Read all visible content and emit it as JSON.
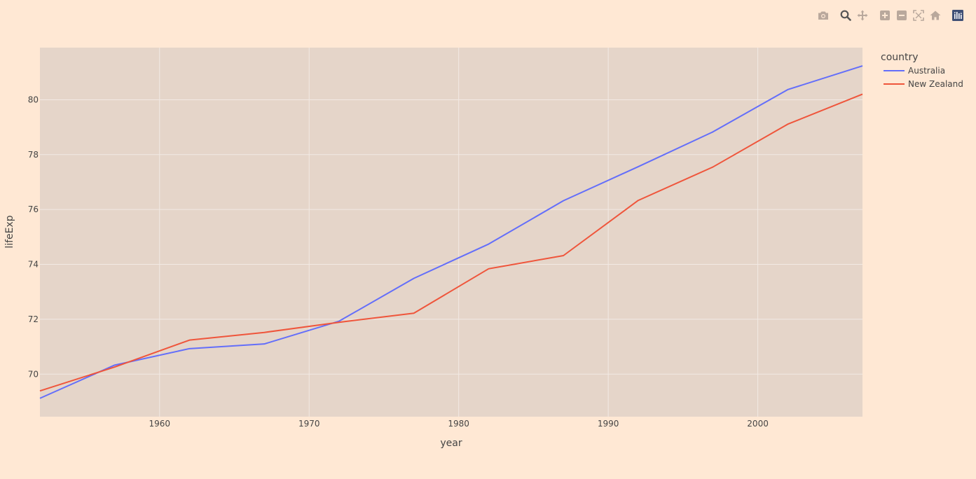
{
  "modebar": {
    "icons": [
      "camera-icon",
      "zoom-icon",
      "pan-icon",
      "zoom-in-icon",
      "zoom-out-icon",
      "autoscale-icon",
      "home-icon",
      "plotly-logo-icon"
    ]
  },
  "colors": {
    "paper_bg": "#ffe8d4",
    "plot_bg": "#e5d5c9",
    "grid": "#f2eae4",
    "australia": "#636efa",
    "new_zealand": "#ef553b"
  },
  "chart_data": {
    "type": "line",
    "x": [
      1952,
      1957,
      1962,
      1967,
      1972,
      1977,
      1982,
      1987,
      1992,
      1997,
      2002,
      2007
    ],
    "xlabel": "year",
    "ylabel": "lifeExp",
    "xlim": [
      1952,
      2007
    ],
    "ylim": [
      68.45,
      81.9
    ],
    "xticks": [
      "1960",
      "1970",
      "1980",
      "1990",
      "2000"
    ],
    "yticks": [
      "70",
      "72",
      "74",
      "76",
      "78",
      "80"
    ],
    "grid": true,
    "legend": {
      "title": "country",
      "placement": "top-right"
    },
    "series": [
      {
        "name": "Australia",
        "color": "#636efa",
        "values": [
          69.12,
          70.33,
          70.93,
          71.1,
          71.93,
          73.49,
          74.74,
          76.32,
          77.56,
          78.83,
          80.37,
          81.235
        ]
      },
      {
        "name": "New Zealand",
        "color": "#ef553b",
        "values": [
          69.39,
          70.26,
          71.24,
          71.52,
          71.89,
          72.22,
          73.84,
          74.32,
          76.33,
          77.55,
          79.11,
          80.204
        ]
      }
    ]
  }
}
